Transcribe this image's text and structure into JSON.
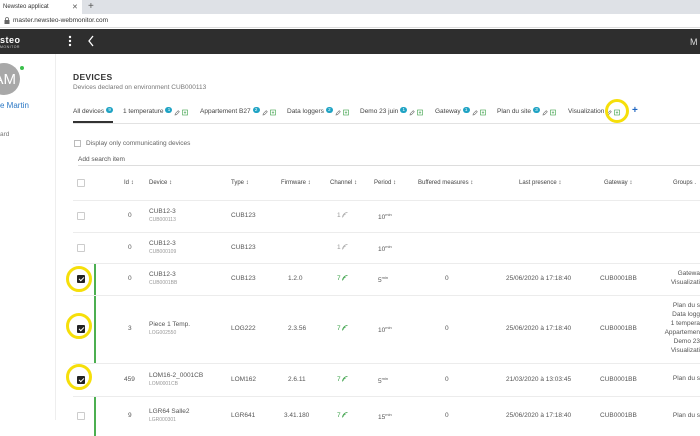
{
  "browser": {
    "tab_title": "Newsteo applicat",
    "url": "master.newsteo-webmonitor.com"
  },
  "app": {
    "logo": "steo",
    "logo_sub": "MONITOR",
    "right_text": "M"
  },
  "sidebar": {
    "avatar_initials": "AM",
    "user_name": "e Martin",
    "item_partial": "ard"
  },
  "page": {
    "title": "DEVICES",
    "subtitle": "Devices declared on environment CUB000113"
  },
  "tabs": [
    {
      "label": "All devices",
      "badge": "9"
    },
    {
      "label": "1 temperature",
      "badge": "1"
    },
    {
      "label": "Appartement B27",
      "badge": "2"
    },
    {
      "label": "Data loggers",
      "badge": "2"
    },
    {
      "label": "Demo 23 juin",
      "badge": "1"
    },
    {
      "label": "Gateway",
      "badge": "1"
    },
    {
      "label": "Plan du site",
      "badge": "3"
    },
    {
      "label": "Visualization",
      "badge": ""
    }
  ],
  "filter": {
    "display_communicating_label": "Display only communicating devices",
    "search_placeholder": "Add search item"
  },
  "table": {
    "headers": {
      "id": "Id",
      "device": "Device",
      "type": "Type",
      "firmware": "Firmware",
      "channel": "Channel",
      "period": "Period",
      "buffered": "Buffered measures",
      "last_presence": "Last presence",
      "gateway": "Gateway",
      "groups": "Groups ."
    },
    "rows": [
      {
        "checked": false,
        "id": "0",
        "name": "CUB12-3",
        "serial": "CUB000113",
        "type": "CUB123",
        "firmware": "",
        "channel": "1",
        "period_value": "10",
        "period_unit": "min",
        "buffered": "",
        "last_presence": "",
        "gateway": "",
        "groups": [],
        "active": false
      },
      {
        "checked": false,
        "id": "0",
        "name": "CUB12-3",
        "serial": "CUB000109",
        "type": "CUB123",
        "firmware": "",
        "channel": "1",
        "period_value": "10",
        "period_unit": "min",
        "buffered": "",
        "last_presence": "",
        "gateway": "",
        "groups": [],
        "active": false
      },
      {
        "checked": true,
        "id": "0",
        "name": "CUB12-3",
        "serial": "CUB0001BB",
        "type": "CUB123",
        "firmware": "1.2.0",
        "channel": "7",
        "period_value": "5",
        "period_unit": "min",
        "buffered": "0",
        "last_presence": "25/06/2020 à 17:18:40",
        "gateway": "CUB0001BB",
        "groups": [
          "Gatewa",
          "Visualizati"
        ],
        "active": true
      },
      {
        "checked": true,
        "id": "3",
        "name": "Piece 1 Temp.",
        "serial": "LOG002550",
        "type": "LOG222",
        "firmware": "2.3.56",
        "channel": "7",
        "period_value": "10",
        "period_unit": "min",
        "buffered": "0",
        "last_presence": "25/06/2020 à 17:18:40",
        "gateway": "CUB0001BB",
        "groups": [
          "Plan du s",
          "Data logg",
          "1 tempera",
          "Appartemen",
          "Demo 23",
          "Visualizati"
        ],
        "active": true
      },
      {
        "checked": true,
        "id": "459",
        "name": "LOM16-2_0001CB",
        "serial": "LOM0001CB",
        "type": "LOM162",
        "firmware": "2.6.11",
        "channel": "7",
        "period_value": "5",
        "period_unit": "min",
        "buffered": "0",
        "last_presence": "21/03/2020 à 13:03:45",
        "gateway": "CUB0001BB",
        "groups": [
          "Plan du s"
        ],
        "active": false
      },
      {
        "checked": false,
        "id": "9",
        "name": "LGR64 Salle2",
        "serial": "LGR000301",
        "type": "LGR641",
        "firmware": "3.41.180",
        "channel": "7",
        "period_value": "15",
        "period_unit": "min",
        "buffered": "0",
        "last_presence": "25/06/2020 à 17:18:40",
        "gateway": "CUB0001BB",
        "groups": [
          "Plan du s"
        ],
        "active": true
      }
    ]
  },
  "colors": {
    "badge": "#1fa3c4",
    "highlight": "#f6df0a",
    "active_bar": "#4caf50",
    "signal_green": "#3aa047",
    "link": "#2b78c5"
  }
}
